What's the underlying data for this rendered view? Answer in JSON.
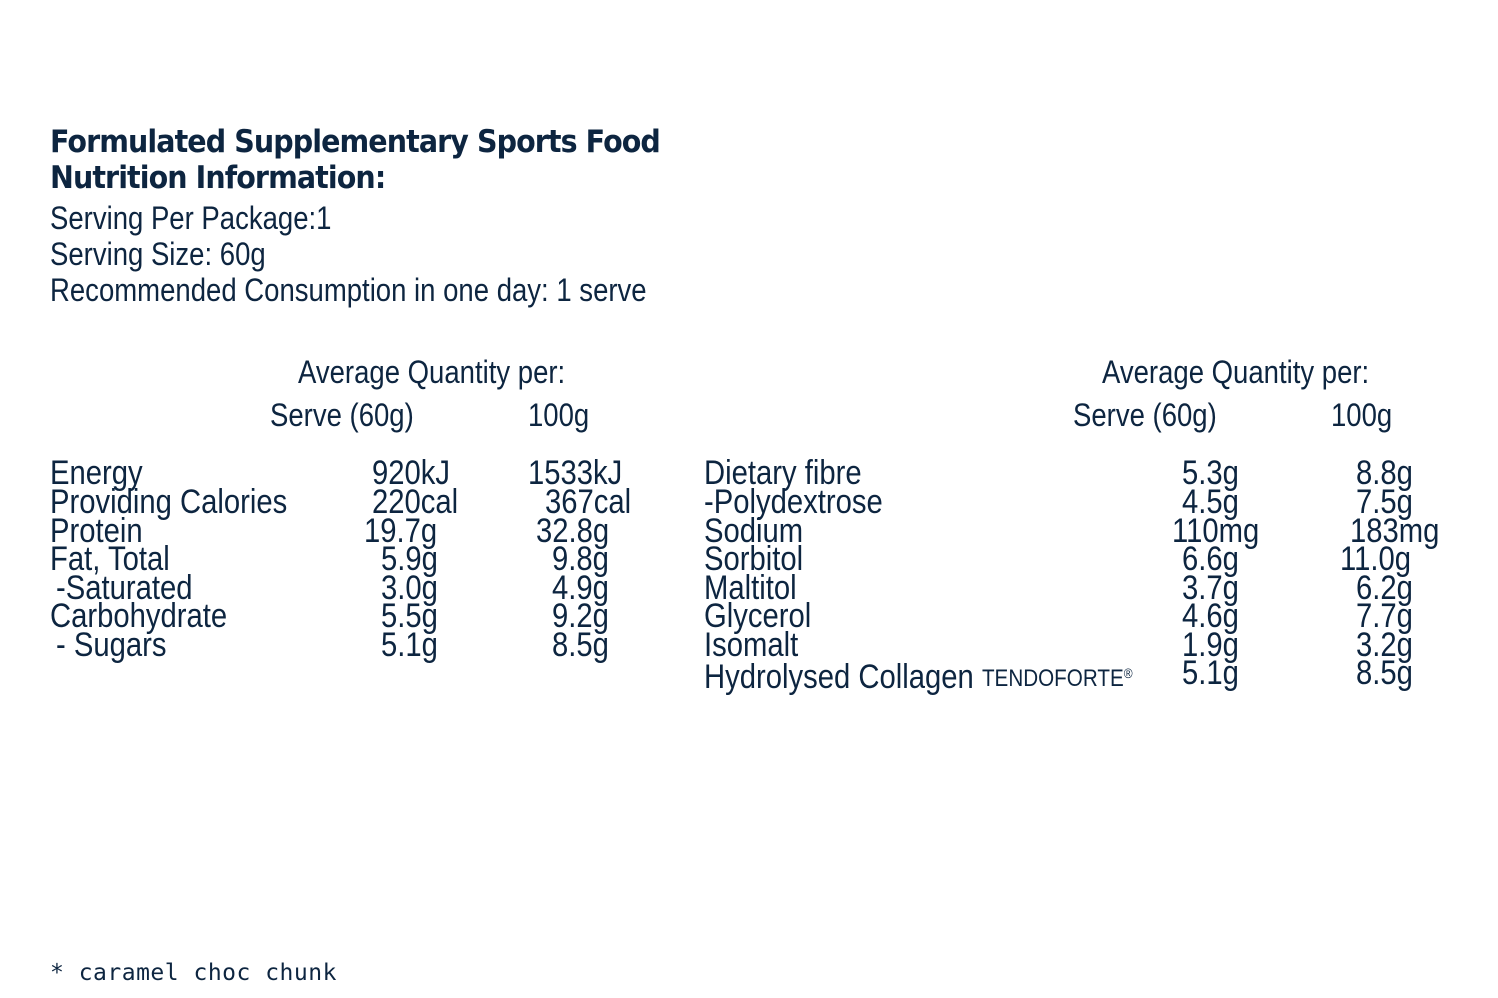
{
  "header": {
    "title_line1": "Formulated Supplementary Sports Food",
    "title_line2": "Nutrition Information:"
  },
  "info": {
    "servings_per_package": "Serving Per Package:1",
    "serving_size": "Serving Size: 60g",
    "recommended": "Recommended Consumption in one day: 1 serve"
  },
  "left_table": {
    "heading": "Average Quantity per:",
    "col_serve": "Serve (60g)",
    "col_100g": "100g",
    "rows": [
      {
        "label": "Energy",
        "serve": "920kJ",
        "per100": "1533kJ"
      },
      {
        "label": "Providing Calories",
        "serve": "220cal",
        "per100": "367cal"
      },
      {
        "label": "Protein",
        "serve": "19.7g",
        "per100": "32.8g"
      },
      {
        "label": "Fat, Total",
        "serve": "5.9g",
        "per100": "9.8g"
      },
      {
        "label": " -Saturated",
        "serve": "3.0g",
        "per100": "4.9g"
      },
      {
        "label": "Carbohydrate",
        "serve": "5.5g",
        "per100": "9.2g"
      },
      {
        "label": " - Sugars",
        "serve": "5.1g",
        "per100": "8.5g"
      }
    ]
  },
  "right_table": {
    "heading": "Average Quantity per:",
    "col_serve": "Serve (60g)",
    "col_100g": "100g",
    "rows": [
      {
        "label": "Dietary fibre",
        "serve": "5.3g",
        "per100": "8.8g"
      },
      {
        "label": "-Polydextrose",
        "serve": "4.5g",
        "per100": "7.5g"
      },
      {
        "label": "Sodium",
        "serve": "110mg",
        "per100": "183mg"
      },
      {
        "label": "Sorbitol",
        "serve": "6.6g",
        "per100": "11.0g"
      },
      {
        "label": "Maltitol",
        "serve": "3.7g",
        "per100": "6.2g"
      },
      {
        "label": "Glycerol",
        "serve": "4.6g",
        "per100": "7.7g"
      },
      {
        "label": "Isomalt",
        "serve": "1.9g",
        "per100": "3.2g"
      },
      {
        "label": "Hydrolysed Collagen",
        "brand": "TENDOFORTE",
        "brand_mark": "®",
        "serve": "5.1g",
        "per100": "8.5g"
      }
    ]
  },
  "footnote": "* caramel choc chunk",
  "colors": {
    "text": "#0d2540",
    "background": "#ffffff"
  }
}
